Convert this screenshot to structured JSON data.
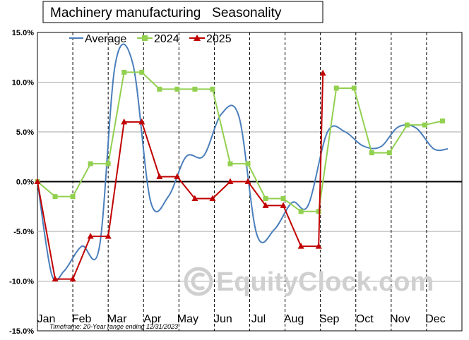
{
  "chart_data": {
    "type": "line",
    "title": "Machinery manufacturing   Seasonality",
    "xlabel": "",
    "ylabel": "",
    "ylim": [
      -15,
      15
    ],
    "y_ticks": [
      15,
      10,
      5,
      0,
      -5,
      -10,
      -15
    ],
    "y_tick_labels": [
      "15.0%",
      "10.0%",
      "5.0%",
      "0.0%",
      "-5.0%",
      "-10.0%",
      "-15.0%"
    ],
    "months": [
      "Jan",
      "Feb",
      "Mar",
      "Apr",
      "May",
      "Jun",
      "Jul",
      "Aug",
      "Sep",
      "Oct",
      "Nov",
      "Dec"
    ],
    "legend_position": "top-left",
    "grid": true,
    "series": [
      {
        "name": "Average",
        "color": "#4a7ebb",
        "x": [
          1,
          1.4,
          1.75,
          2.25,
          2.75,
          3.2,
          3.7,
          4.2,
          4.7,
          5.2,
          5.7,
          6.2,
          6.7,
          7.2,
          7.7,
          8.2,
          8.65,
          9.2,
          9.7,
          10.2,
          10.7,
          11.2,
          11.7,
          12.2,
          12.6
        ],
        "y": [
          0.0,
          -9.3,
          -9.0,
          -6.5,
          -6.6,
          11.8,
          11.8,
          -2.0,
          -1.5,
          2.5,
          2.6,
          6.8,
          6.5,
          -5.3,
          -4.8,
          -2.1,
          -2.4,
          5.0,
          5.0,
          3.6,
          3.5,
          5.5,
          5.4,
          3.3,
          3.3
        ]
      },
      {
        "name": "2024",
        "color": "#92d050",
        "x": [
          1,
          1.5,
          2.0,
          2.5,
          3.0,
          3.45,
          3.95,
          4.45,
          4.95,
          5.45,
          5.95,
          6.45,
          6.95,
          7.45,
          7.95,
          8.45,
          8.95,
          9.45,
          9.95,
          10.45,
          10.95,
          11.45,
          11.95,
          12.45
        ],
        "y": [
          0.0,
          -1.5,
          -1.5,
          1.8,
          1.8,
          11.0,
          11.0,
          9.3,
          9.3,
          9.3,
          9.3,
          1.8,
          1.8,
          -1.7,
          -1.7,
          -3.0,
          -3.0,
          9.4,
          9.4,
          2.9,
          2.9,
          5.7,
          5.7,
          6.1
        ]
      },
      {
        "name": "2025",
        "color": "#c00000",
        "x": [
          1,
          1.5,
          2.0,
          2.5,
          3.0,
          3.45,
          3.95,
          4.45,
          4.95,
          5.45,
          5.95,
          6.45,
          6.95,
          7.45,
          7.95,
          8.45,
          8.95,
          9.07
        ],
        "y": [
          0.0,
          -9.8,
          -9.8,
          -5.5,
          -5.5,
          6.0,
          6.0,
          0.5,
          0.5,
          -1.7,
          -1.7,
          0.0,
          0.0,
          -2.4,
          -2.4,
          -6.5,
          -6.5,
          10.9
        ]
      }
    ]
  },
  "footnote": "Timeframe: 20-Year range ending 12/31/2023",
  "watermark": {
    "text": "EquityClock.com",
    "icon": "copyright-icon"
  }
}
